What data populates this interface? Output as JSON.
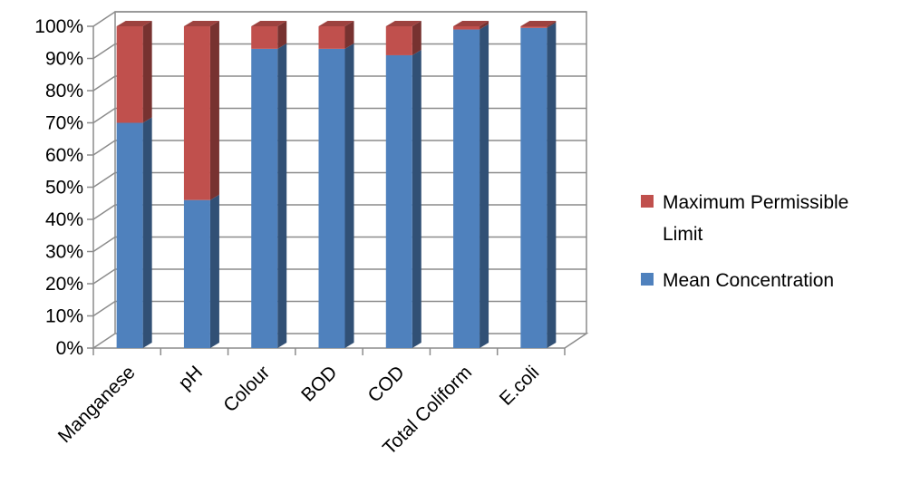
{
  "chart_data": {
    "type": "bar",
    "stacked": true,
    "percent_stacked": true,
    "three_d": true,
    "categories": [
      "Manganese",
      "pH",
      "Colour",
      "BOD",
      "COD",
      "Total Coliform",
      "E.coli"
    ],
    "series": [
      {
        "name": "Mean Concentration",
        "color": "#4F81BD",
        "values": [
          70,
          46,
          93,
          93,
          91,
          99,
          99.5
        ]
      },
      {
        "name": "Maximum Permissible Limit",
        "color": "#C0504D",
        "values": [
          30,
          54,
          7,
          7,
          9,
          1,
          0.5
        ]
      }
    ],
    "y_ticks": [
      "0%",
      "10%",
      "20%",
      "30%",
      "40%",
      "50%",
      "60%",
      "70%",
      "80%",
      "90%",
      "100%"
    ],
    "ylim": [
      0,
      100
    ],
    "grid": true,
    "legend_position": "right",
    "legend_order": [
      "Maximum Permissible Limit",
      "Mean Concentration"
    ],
    "title": "",
    "xlabel": "",
    "ylabel": ""
  }
}
